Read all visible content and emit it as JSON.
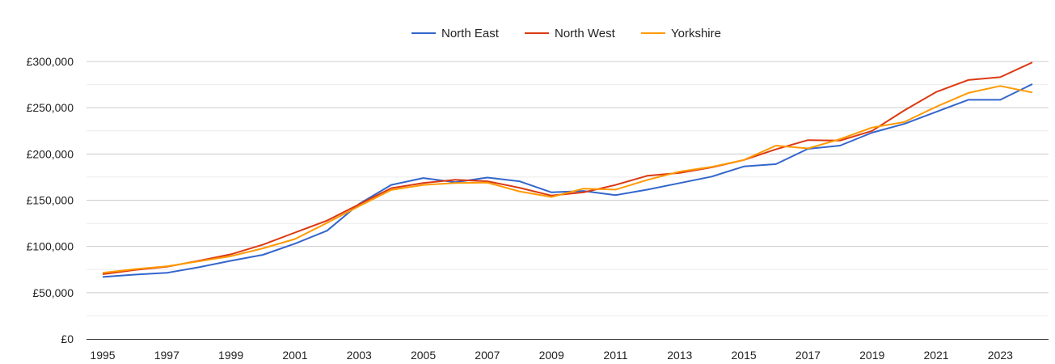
{
  "chart_data": {
    "type": "line",
    "title": "",
    "xlabel": "",
    "ylabel": "",
    "x": [
      1995,
      1996,
      1997,
      1998,
      1999,
      2000,
      2001,
      2002,
      2003,
      2004,
      2005,
      2006,
      2007,
      2008,
      2009,
      2010,
      2011,
      2012,
      2013,
      2014,
      2015,
      2016,
      2017,
      2018,
      2019,
      2020,
      2021,
      2022,
      2023,
      2024
    ],
    "x_tick_labels": [
      "1995",
      "1997",
      "1999",
      "2001",
      "2003",
      "2005",
      "2007",
      "2009",
      "2011",
      "2013",
      "2015",
      "2017",
      "2019",
      "2021",
      "2023"
    ],
    "y_tick_labels": [
      "£0",
      "£50,000",
      "£100,000",
      "£150,000",
      "£200,000",
      "£250,000",
      "£300,000"
    ],
    "ylim": [
      0,
      300000
    ],
    "y_ticks": [
      0,
      50000,
      100000,
      150000,
      200000,
      250000,
      300000
    ],
    "grid": true,
    "legend_position": "top",
    "series": [
      {
        "name": "North East",
        "color": "#3366cc",
        "values": [
          67000,
          69500,
          71500,
          77500,
          84500,
          91000,
          103000,
          117000,
          146000,
          166500,
          174000,
          169500,
          174500,
          170500,
          158500,
          160000,
          155500,
          161500,
          168500,
          175500,
          186500,
          189000,
          205500,
          209000,
          223000,
          232500,
          245500,
          258500,
          258500,
          275500
        ]
      },
      {
        "name": "North West",
        "color": "#dc3912",
        "values": [
          70000,
          74500,
          78000,
          84500,
          91500,
          102000,
          115000,
          128000,
          145500,
          163000,
          168500,
          172000,
          170500,
          163500,
          155000,
          158500,
          166500,
          176500,
          179500,
          185500,
          193500,
          205000,
          215000,
          214500,
          225000,
          247000,
          267000,
          280000,
          283000,
          299000
        ]
      },
      {
        "name": "Yorkshire",
        "color": "#ff9900",
        "values": [
          71500,
          75500,
          78500,
          84000,
          89500,
          98000,
          108000,
          125500,
          143500,
          161000,
          166500,
          168500,
          169000,
          159500,
          153500,
          162500,
          161500,
          172000,
          181000,
          186000,
          193500,
          209000,
          206000,
          216000,
          228500,
          234500,
          251000,
          266000,
          273500,
          266500
        ]
      }
    ]
  }
}
